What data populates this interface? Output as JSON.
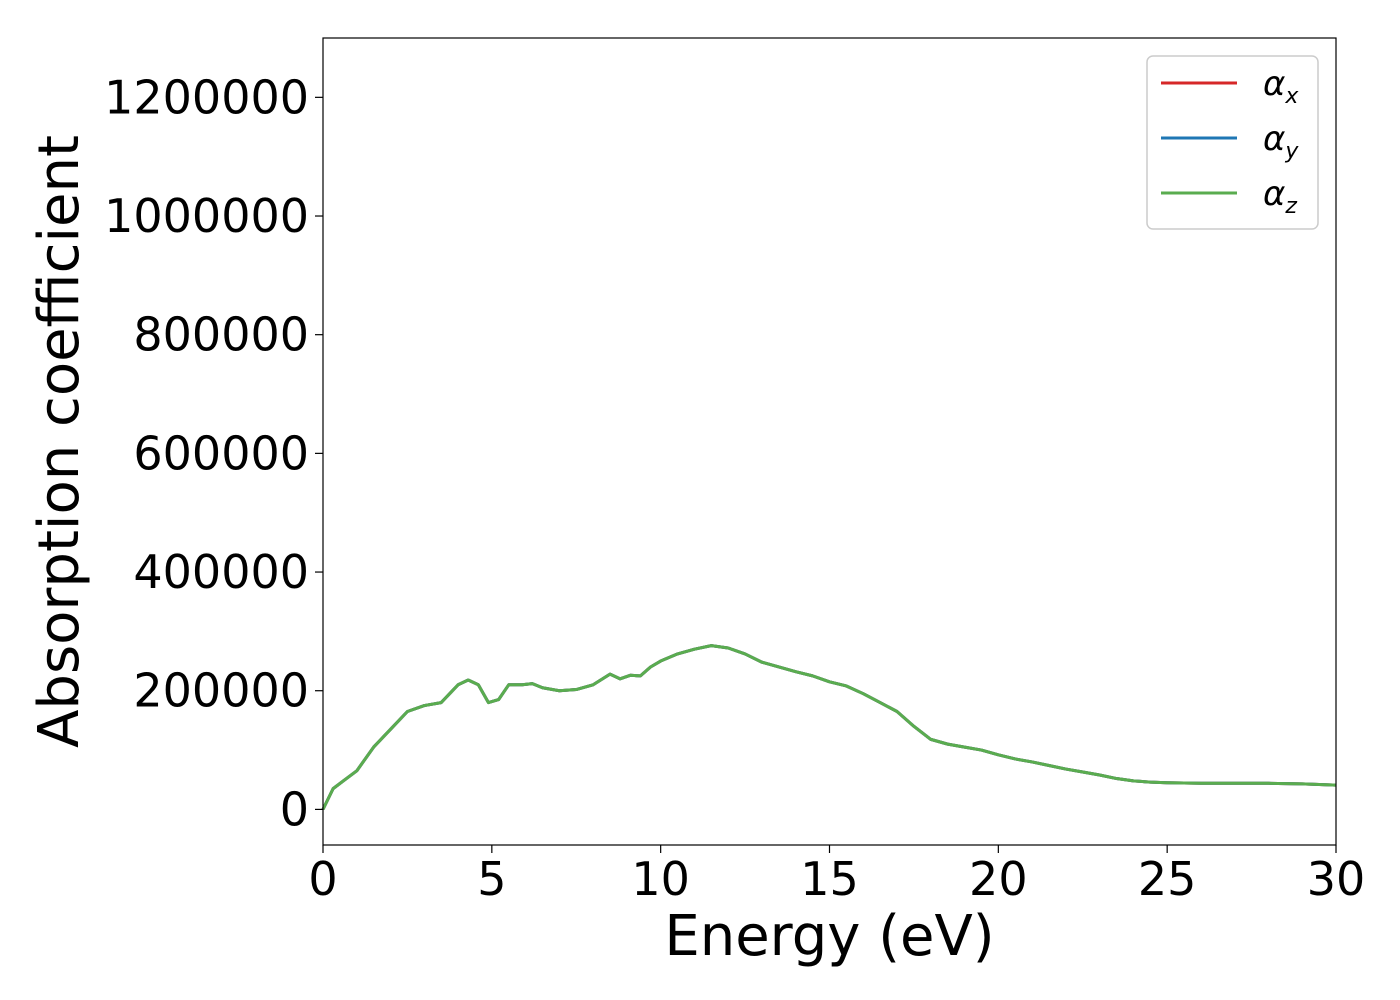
{
  "chart_data": {
    "type": "line",
    "xlabel": "Energy (eV)",
    "ylabel": "Absorption coefficient",
    "xlim": [
      0,
      30
    ],
    "ylim": [
      -60000,
      1300000
    ],
    "x_ticks": [
      0,
      5,
      10,
      15,
      20,
      25,
      30
    ],
    "y_ticks": [
      0,
      200000,
      400000,
      600000,
      800000,
      1000000,
      1200000
    ],
    "x_tick_labels": [
      "0",
      "5",
      "10",
      "15",
      "20",
      "25",
      "30"
    ],
    "y_tick_labels": [
      "0",
      "200000",
      "400000",
      "600000",
      "800000",
      "1000000",
      "1200000"
    ],
    "grid": false,
    "legend_position": "top-right",
    "x": [
      0,
      0.3,
      0.6,
      1.0,
      1.5,
      2.0,
      2.5,
      3.0,
      3.5,
      4.0,
      4.3,
      4.6,
      4.9,
      5.2,
      5.5,
      5.9,
      6.2,
      6.5,
      7.0,
      7.5,
      8.0,
      8.5,
      8.8,
      9.1,
      9.4,
      9.7,
      10.0,
      10.5,
      11.0,
      11.5,
      12.0,
      12.5,
      13.0,
      13.5,
      14.0,
      14.5,
      15.0,
      15.5,
      16.0,
      16.5,
      17.0,
      17.5,
      18.0,
      18.5,
      19.0,
      19.5,
      20.0,
      20.5,
      21.0,
      21.5,
      22.0,
      22.5,
      23.0,
      23.5,
      24.0,
      24.5,
      25.0,
      26.0,
      27.0,
      28.0,
      29.0,
      30.0
    ],
    "series": [
      {
        "name": "αx",
        "color": "#d62728",
        "values": [
          0,
          35000,
          48000,
          65000,
          105000,
          135000,
          165000,
          175000,
          180000,
          210000,
          218000,
          210000,
          180000,
          185000,
          210000,
          210000,
          212000,
          205000,
          200000,
          202000,
          210000,
          228000,
          220000,
          226000,
          225000,
          240000,
          250000,
          262000,
          270000,
          276000,
          272000,
          262000,
          248000,
          240000,
          232000,
          225000,
          215000,
          208000,
          195000,
          180000,
          165000,
          140000,
          118000,
          110000,
          105000,
          100000,
          92000,
          85000,
          80000,
          74000,
          68000,
          63000,
          58000,
          52000,
          48000,
          46000,
          45000,
          44000,
          44000,
          44000,
          43000,
          41000
        ]
      },
      {
        "name": "αy",
        "color": "#1f77b4",
        "values": [
          0,
          35000,
          48000,
          65000,
          105000,
          135000,
          165000,
          175000,
          180000,
          210000,
          218000,
          210000,
          180000,
          185000,
          210000,
          210000,
          212000,
          205000,
          200000,
          202000,
          210000,
          228000,
          220000,
          226000,
          225000,
          240000,
          250000,
          262000,
          270000,
          276000,
          272000,
          262000,
          248000,
          240000,
          232000,
          225000,
          215000,
          208000,
          195000,
          180000,
          165000,
          140000,
          118000,
          110000,
          105000,
          100000,
          92000,
          85000,
          80000,
          74000,
          68000,
          63000,
          58000,
          52000,
          48000,
          46000,
          45000,
          44000,
          44000,
          44000,
          43000,
          41000
        ]
      },
      {
        "name": "αz",
        "color": "#5aac4f",
        "values": [
          0,
          35000,
          48000,
          65000,
          105000,
          135000,
          165000,
          175000,
          180000,
          210000,
          218000,
          210000,
          180000,
          185000,
          210000,
          210000,
          212000,
          205000,
          200000,
          202000,
          210000,
          228000,
          220000,
          226000,
          225000,
          240000,
          250000,
          262000,
          270000,
          276000,
          272000,
          262000,
          248000,
          240000,
          232000,
          225000,
          215000,
          208000,
          195000,
          180000,
          165000,
          140000,
          118000,
          110000,
          105000,
          100000,
          92000,
          85000,
          80000,
          74000,
          68000,
          63000,
          58000,
          52000,
          48000,
          46000,
          45000,
          44000,
          44000,
          44000,
          43000,
          41000
        ]
      }
    ],
    "legend": [
      {
        "symbol": "α",
        "sub": "x",
        "color": "#d62728"
      },
      {
        "symbol": "α",
        "sub": "y",
        "color": "#1f77b4"
      },
      {
        "symbol": "α",
        "sub": "z",
        "color": "#5aac4f"
      }
    ]
  }
}
